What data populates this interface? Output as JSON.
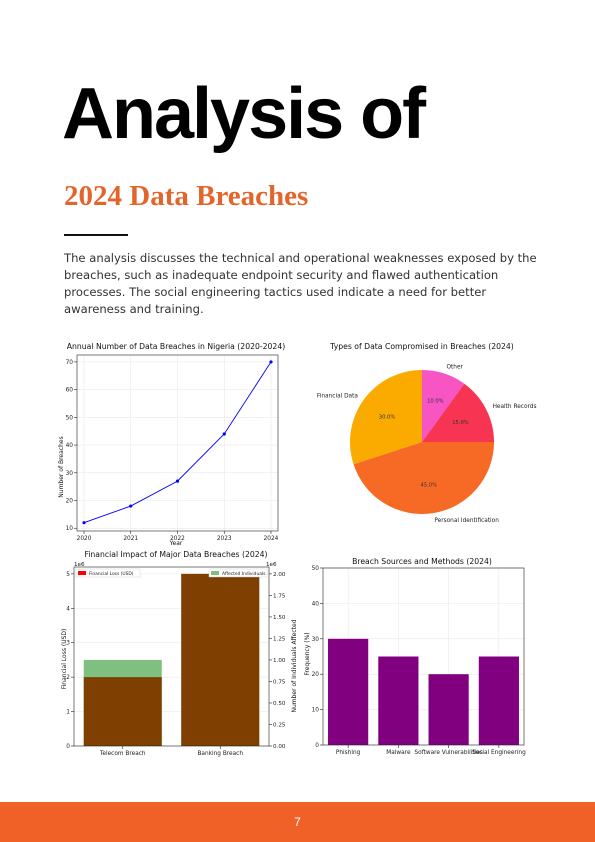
{
  "heading": {
    "title": "Analysis of",
    "subtitle": "2024 Data Breaches"
  },
  "intro": "The analysis discusses the technical and operational weaknesses exposed by the breaches, such as inadequate endpoint security and flawed authentication processes. The social engineering tactics used indicate a need for better awareness and training.",
  "footer": {
    "page_number": "7"
  },
  "colors": {
    "accent": "#e3652b",
    "footer": "#f06128",
    "line": "#0000ff",
    "bar": "#800080",
    "loss": "#7f3f00",
    "affected": "#7fbf7f"
  },
  "chart_data": [
    {
      "type": "line",
      "title": "Annual Number of Data Breaches in Nigeria (2020-2024)",
      "xlabel": "Year",
      "ylabel": "Number of Breaches",
      "x": [
        2020,
        2021,
        2022,
        2023,
        2024
      ],
      "y": [
        12,
        18,
        27,
        44,
        70
      ],
      "yticks": [
        10,
        20,
        30,
        40,
        50,
        60,
        70
      ],
      "grid": true
    },
    {
      "type": "pie",
      "title": "Types of Data Compromised in Breaches (2024)",
      "slices": [
        {
          "label": "Other",
          "value": 10.0,
          "pct": "10.0%",
          "color": "#f754c4"
        },
        {
          "label": "Health Records",
          "value": 15.0,
          "pct": "15.0%",
          "color": "#f73451"
        },
        {
          "label": "Personal Identification",
          "value": 45.0,
          "pct": "45.0%",
          "color": "#f76a25"
        },
        {
          "label": "Financial Data",
          "value": 30.0,
          "pct": "30.0%",
          "color": "#fbaa00"
        }
      ]
    },
    {
      "type": "bar",
      "title": "Financial Impact of Major Data Breaches (2024)",
      "categories": [
        "Telecom Breach",
        "Banking Breach"
      ],
      "series": [
        {
          "name": "Financial Loss (USD)",
          "values": [
            2000000,
            5000000
          ],
          "axis": "left",
          "color": "#7f3f00"
        },
        {
          "name": "Affected Individuals",
          "values": [
            1000000,
            2000000
          ],
          "axis": "right",
          "color": "#7fbf7f"
        }
      ],
      "ylabel": "Financial Loss (USD)",
      "y2label": "Number of Individuals Affected",
      "yticks": [
        "0",
        "1",
        "2",
        "3",
        "4",
        "5"
      ],
      "y2ticks": [
        "0.00",
        "0.25",
        "0.50",
        "0.75",
        "1.00",
        "1.25",
        "1.50",
        "1.75",
        "2.00"
      ],
      "scale_label": "1e6",
      "scale_label_right": "1e6",
      "legend_left": "upper left",
      "legend_right": "upper right"
    },
    {
      "type": "bar",
      "title": "Breach Sources and Methods (2024)",
      "categories": [
        "Phishing",
        "Malware",
        "Software Vulnerabilities",
        "Social Engineering"
      ],
      "values": [
        30,
        25,
        20,
        25
      ],
      "ylabel": "Frequency (%)",
      "yticks": [
        0,
        10,
        20,
        30,
        40,
        50
      ],
      "ylim": [
        0,
        50
      ],
      "color": "#800080",
      "grid": true
    }
  ]
}
